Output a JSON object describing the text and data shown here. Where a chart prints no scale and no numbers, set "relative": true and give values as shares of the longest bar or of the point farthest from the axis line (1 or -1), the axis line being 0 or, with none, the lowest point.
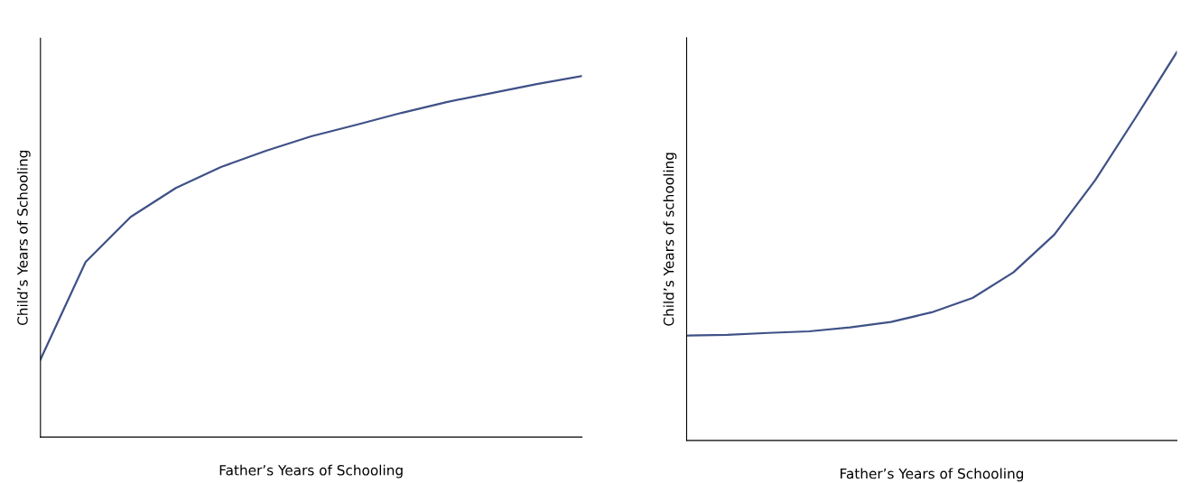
{
  "chart_data": [
    {
      "type": "line",
      "relative": true,
      "xlabel": "Father’s Years of Schooling",
      "ylabel": "Child’s Years of Schooling",
      "categories": [
        null,
        null,
        null,
        null,
        null,
        null,
        null,
        null,
        null,
        null,
        null,
        null,
        null
      ],
      "series": [
        {
          "color": "#3f5187",
          "values": [
            0.215,
            0.485,
            0.61,
            0.69,
            0.748,
            0.793,
            0.833,
            0.865,
            0.898,
            0.928,
            0.953,
            0.978,
            1.0
          ]
        }
      ],
      "grid": false,
      "tick_labels": false,
      "marker": "none",
      "line_style": "solid"
    },
    {
      "type": "line",
      "relative": true,
      "xlabel": "Father’s Years of Schooling",
      "ylabel": "Child’s Years of schooling",
      "categories": [
        null,
        null,
        null,
        null,
        null,
        null,
        null,
        null,
        null,
        null,
        null,
        null,
        null
      ],
      "series": [
        {
          "color": "#3f5187",
          "values": [
            0.27,
            0.272,
            0.277,
            0.281,
            0.291,
            0.305,
            0.33,
            0.367,
            0.433,
            0.53,
            0.67,
            0.833,
            1.0
          ]
        }
      ],
      "grid": false,
      "tick_labels": false,
      "marker": "none",
      "line_style": "solid"
    }
  ]
}
